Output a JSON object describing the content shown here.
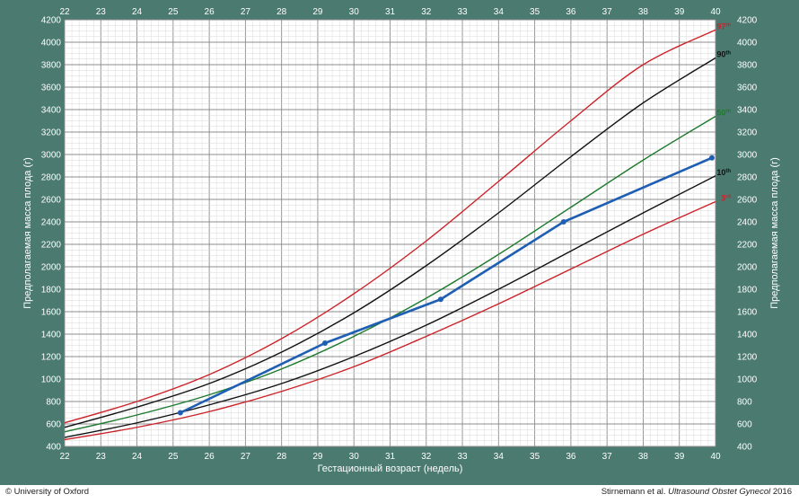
{
  "colors": {
    "frame": "#4b7a70",
    "grid_minor": "#d9d9d9",
    "grid_major": "#8c8c8c",
    "curve_red": "#cc2229",
    "curve_black": "#111111",
    "curve_green": "#1e7a2e",
    "patient": "#1f5fb3"
  },
  "chart_data": {
    "type": "line",
    "xlabel": "Гестационный возраст (недель)",
    "ylabel_left": "Предполагаемая масса плода (г)",
    "ylabel_right": "Предполагаемая масса плода (г)",
    "xlim": [
      22,
      40
    ],
    "ylim": [
      400,
      4200
    ],
    "x_ticks": [
      22,
      23,
      24,
      25,
      26,
      27,
      28,
      29,
      30,
      31,
      32,
      33,
      34,
      35,
      36,
      37,
      38,
      39,
      40
    ],
    "y_ticks": [
      400,
      600,
      800,
      1000,
      1200,
      1400,
      1600,
      1800,
      2000,
      2200,
      2400,
      2600,
      2800,
      3000,
      3200,
      3400,
      3600,
      3800,
      4000,
      4200
    ],
    "grid": true,
    "x": [
      22,
      24,
      26,
      28,
      30,
      32,
      34,
      36,
      38,
      40
    ],
    "series": [
      {
        "name": "3",
        "suffix": "rd",
        "color": "#cc2229",
        "values": [
          460,
          570,
          710,
          890,
          1110,
          1380,
          1670,
          1980,
          2290,
          2580
        ]
      },
      {
        "name": "10",
        "suffix": "th",
        "color": "#111111",
        "values": [
          480,
          610,
          770,
          960,
          1200,
          1480,
          1800,
          2140,
          2480,
          2810
        ]
      },
      {
        "name": "50",
        "suffix": "th",
        "color": "#1e7a2e",
        "values": [
          530,
          680,
          860,
          1090,
          1380,
          1720,
          2110,
          2530,
          2950,
          3340
        ]
      },
      {
        "name": "90",
        "suffix": "th",
        "color": "#111111",
        "values": [
          570,
          750,
          960,
          1240,
          1590,
          2010,
          2480,
          2980,
          3460,
          3860
        ]
      },
      {
        "name": "97",
        "suffix": "th",
        "color": "#cc2229",
        "values": [
          610,
          800,
          1040,
          1360,
          1760,
          2230,
          2760,
          3300,
          3800,
          4110
        ]
      }
    ],
    "patient": {
      "color": "#1f5fb3",
      "points": [
        {
          "x": 25.2,
          "y": 700
        },
        {
          "x": 29.2,
          "y": 1320
        },
        {
          "x": 32.4,
          "y": 1710
        },
        {
          "x": 35.8,
          "y": 2400
        },
        {
          "x": 39.9,
          "y": 2970
        }
      ]
    }
  },
  "footer": {
    "left": "© University of Oxford",
    "right_plain": "Stirnemann et al. ",
    "right_italic": "Ultrasound Obstet Gynecol",
    "right_year": " 2016"
  }
}
